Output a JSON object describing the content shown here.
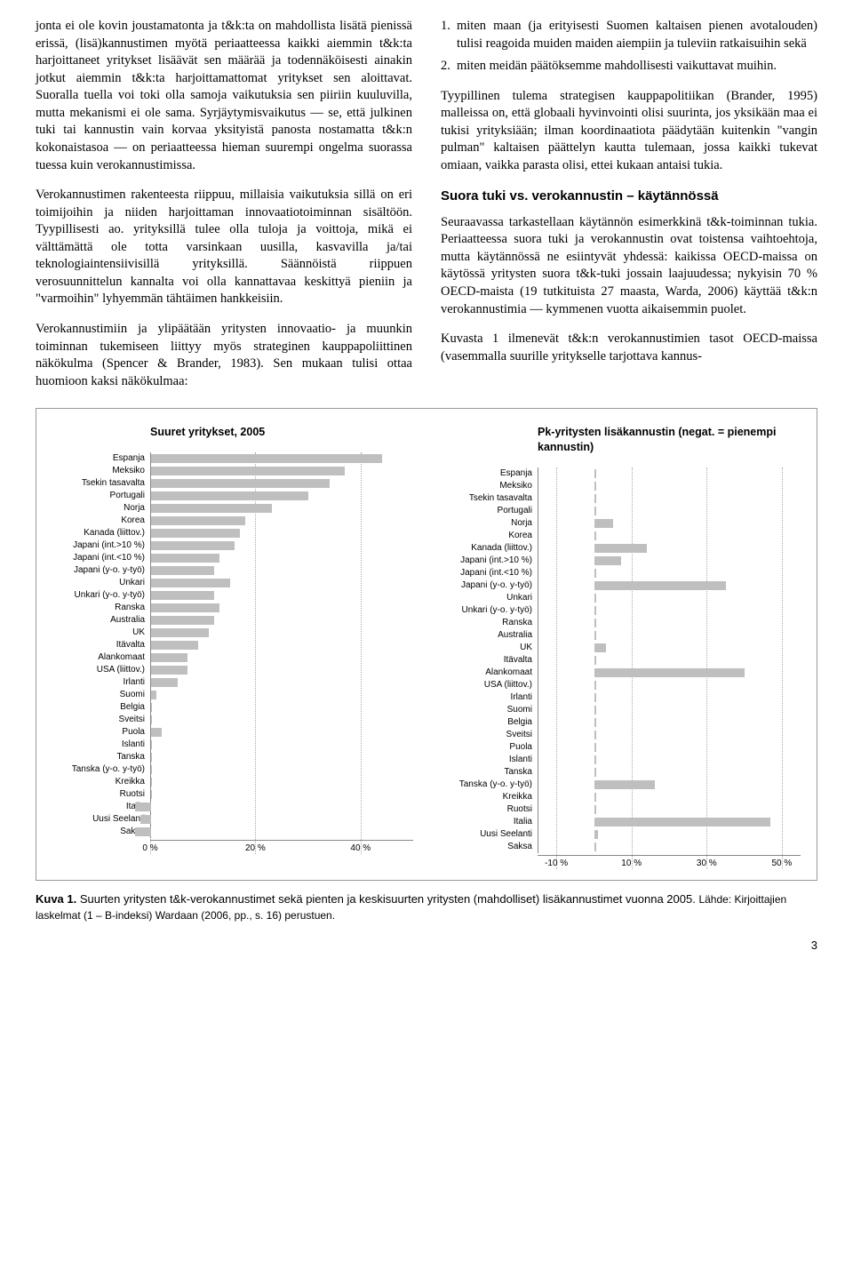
{
  "leftCol": {
    "p1": "jonta ei ole kovin joustamatonta ja t&k:ta on mahdollista lisätä pienissä erissä, (lisä)kannustimen myötä periaatteessa kaikki aiemmin t&k:ta harjoittaneet yritykset lisäävät sen määrää ja todennäköisesti ainakin jotkut aiemmin t&k:ta harjoittamattomat yritykset sen aloittavat. Suoralla tuella voi toki olla samoja vaikutuksia sen piiriin kuuluvilla, mutta mekanismi ei ole sama. Syrjäytymisvaikutus — se, että julkinen tuki tai kannustin vain korvaa yksityistä panosta nostamatta t&k:n kokonaistasoa — on periaatteessa hieman suurempi ongelma suorassa tuessa kuin verokannustimissa.",
    "p2": "Verokannustimen rakenteesta riippuu, millaisia vaikutuksia sillä on eri toimijoihin ja niiden harjoittaman innovaatiotoiminnan sisältöön. Tyypillisesti ao. yrityksillä tulee olla tuloja ja voittoja, mikä ei välttämättä ole totta varsinkaan uusilla, kasvavilla ja/tai teknologiaintensiivisillä yrityksillä. Säännöistä riippuen verosuunnittelun kannalta voi olla kannattavaa keskittyä pieniin ja \"varmoihin\" lyhyemmän tähtäimen hankkeisiin.",
    "p3": "Verokannustimiin ja ylipäätään yritysten innovaatio- ja muunkin toiminnan tukemiseen liittyy myös strateginen kauppapoliittinen näkökulma (Spencer & Brander, 1983). Sen mukaan tulisi ottaa huomioon kaksi näkökulmaa:"
  },
  "rightCol": {
    "li1": "miten maan (ja erityisesti Suomen kaltaisen pienen avotalouden) tulisi reagoida muiden maiden aiempiin ja tuleviin ratkaisuihin sekä",
    "li2": "miten meidän päätöksemme mahdollisesti vaikuttavat muihin.",
    "p1": "Tyypillinen tulema strategisen kauppapolitiikan (Brander, 1995) malleissa on, että globaali hyvinvointi olisi suurinta, jos yksikään maa ei tukisi yrityksiään; ilman koordinaatiota päädytään kuitenkin \"vangin pulman\" kaltaisen päättelyn kautta tulemaan, jossa kaikki tukevat omiaan, vaikka parasta olisi, ettei kukaan antaisi tukia.",
    "heading": "Suora tuki vs. verokannustin – käytännössä",
    "p2": "Seuraavassa tarkastellaan käytännön esimerkkinä t&k-toiminnan tukia. Periaatteessa suora tuki ja verokannustin ovat toistensa vaihtoehtoja, mutta käytännössä ne esiintyvät yhdessä: kaikissa OECD-maissa on käytössä yritysten suora t&k-tuki jossain laajuudessa; nykyisin 70 % OECD-maista (19 tutkituista 27 maasta, Warda, 2006) käyttää t&k:n verokannustimia — kymmenen vuotta aikaisemmin puolet.",
    "p3": "Kuvasta 1 ilmenevät t&k:n verokannustimien tasot OECD-maissa (vasemmalla suurille yritykselle tarjottava kannus-"
  },
  "charts": {
    "countries": [
      "Espanja",
      "Meksiko",
      "Tsekin tasavalta",
      "Portugali",
      "Norja",
      "Korea",
      "Kanada (liittov.)",
      "Japani (int.>10 %)",
      "Japani (int.<10 %)",
      "Japani (y-o. y-työ)",
      "Unkari",
      "Unkari (y-o. y-työ)",
      "Ranska",
      "Australia",
      "UK",
      "Itävalta",
      "Alankomaat",
      "USA (liittov.)",
      "Irlanti",
      "Suomi",
      "Belgia",
      "Sveitsi",
      "Puola",
      "Islanti",
      "Tanska",
      "Tanska (y-o. y-työ)",
      "Kreikka",
      "Ruotsi",
      "Italia",
      "Uusi Seelanti",
      "Saksa"
    ],
    "left": {
      "title": "Suuret yritykset, 2005",
      "type": "bar",
      "xlim": [
        0,
        50
      ],
      "xticks": [
        0,
        20,
        40
      ],
      "xtick_labels": [
        "0 %",
        "20 %",
        "40 %"
      ],
      "bar_color": "#bfbfbf",
      "background_color": "#ffffff",
      "values": [
        44,
        37,
        34,
        30,
        23,
        18,
        17,
        16,
        13,
        12,
        15,
        12,
        13,
        12,
        11,
        9,
        7,
        7,
        5,
        1,
        0,
        0,
        2,
        0,
        0,
        0,
        0,
        0,
        -3,
        -2,
        -3
      ]
    },
    "right": {
      "title": "Pk-yritysten lisäkannustin (negat. = pienempi kannustin)",
      "type": "bar",
      "xlim": [
        -15,
        55
      ],
      "xticks": [
        -10,
        10,
        30,
        50
      ],
      "xtick_labels": [
        "-10 %",
        "10 %",
        "30 %",
        "50 %"
      ],
      "bar_color": "#bfbfbf",
      "background_color": "#ffffff",
      "values": [
        0,
        0,
        0,
        0,
        5,
        0,
        14,
        7,
        0,
        35,
        0,
        0,
        0,
        0,
        3,
        0,
        40,
        0,
        0,
        0,
        0,
        0,
        0,
        0,
        0,
        16,
        0,
        0,
        47,
        1,
        0
      ]
    }
  },
  "caption": {
    "bold": "Kuva 1.",
    "main": " Suurten yritysten t&k-verokannustimet sekä pienten ja keskisuurten yritysten (mahdolliset) lisäkannustimet vuonna 2005. ",
    "source": "Lähde: Kirjoittajien laskelmat (1 – B-indeksi) Wardaan (2006, pp., s. 16) perustuen."
  },
  "pageNumber": "3"
}
